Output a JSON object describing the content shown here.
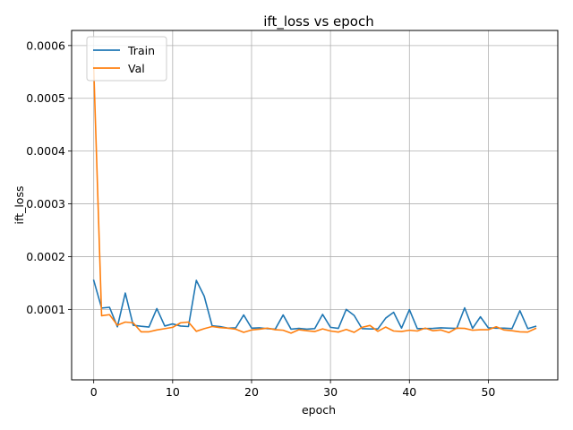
{
  "chart_data": {
    "type": "line",
    "title": "ift_loss vs epoch",
    "xlabel": "epoch",
    "ylabel": "ift_loss",
    "xlim": [
      -2.8,
      58.8
    ],
    "ylim": [
      -3.35e-05,
      0.0006286
    ],
    "xticks": [
      0,
      10,
      20,
      30,
      40,
      50
    ],
    "yticks": [
      0.0001,
      0.0002,
      0.0003,
      0.0004,
      0.0005,
      0.0006
    ],
    "ytick_labels": [
      "0.0001",
      "0.0002",
      "0.0003",
      "0.0004",
      "0.0005",
      "0.0006"
    ],
    "grid": true,
    "legend_position": "upper-left",
    "x": [
      0,
      1,
      2,
      3,
      4,
      5,
      6,
      7,
      8,
      9,
      10,
      11,
      12,
      13,
      14,
      15,
      16,
      17,
      18,
      19,
      20,
      21,
      22,
      23,
      24,
      25,
      26,
      27,
      28,
      29,
      30,
      31,
      32,
      33,
      34,
      35,
      36,
      37,
      38,
      39,
      40,
      41,
      42,
      43,
      44,
      45,
      46,
      47,
      48,
      49,
      50,
      51,
      52,
      53,
      54,
      55,
      56
    ],
    "series": [
      {
        "name": "Train",
        "color": "#1f77b4",
        "values": [
          0.000155,
          0.0001025,
          0.000104,
          6.7e-05,
          0.000131,
          7e-05,
          6.8e-05,
          6.65e-05,
          0.0001015,
          6.85e-05,
          7.25e-05,
          6.85e-05,
          6.75e-05,
          0.000155,
          0.000125,
          6.9e-05,
          6.75e-05,
          6.45e-05,
          6.5e-05,
          8.95e-05,
          6.45e-05,
          6.5e-05,
          6.35e-05,
          6.25e-05,
          8.95e-05,
          6.25e-05,
          6.4e-05,
          6.25e-05,
          6.35e-05,
          9.05e-05,
          6.6e-05,
          6.4e-05,
          0.0001,
          8.85e-05,
          6.35e-05,
          6.3e-05,
          6.3e-05,
          8.35e-05,
          9.45e-05,
          6.45e-05,
          9.95e-05,
          6.35e-05,
          6.35e-05,
          6.4e-05,
          6.5e-05,
          6.45e-05,
          6.4e-05,
          0.000103,
          6.4e-05,
          8.6e-05,
          6.5e-05,
          6.45e-05,
          6.45e-05,
          6.35e-05,
          9.75e-05,
          6.35e-05,
          6.8e-05
        ]
      },
      {
        "name": "Val",
        "color": "#ff7f0e",
        "values": [
          0.000558,
          8.8e-05,
          9e-05,
          7e-05,
          7.6e-05,
          7.45e-05,
          5.75e-05,
          5.75e-05,
          6.1e-05,
          6.35e-05,
          6.6e-05,
          7.45e-05,
          7.6e-05,
          5.85e-05,
          6.35e-05,
          6.75e-05,
          6.55e-05,
          6.45e-05,
          6.25e-05,
          5.65e-05,
          6.1e-05,
          6.25e-05,
          6.45e-05,
          6.15e-05,
          6.05e-05,
          5.5e-05,
          6.15e-05,
          5.95e-05,
          5.8e-05,
          6.3e-05,
          5.9e-05,
          5.7e-05,
          6.2e-05,
          5.65e-05,
          6.6e-05,
          6.95e-05,
          5.85e-05,
          6.65e-05,
          5.9e-05,
          5.8e-05,
          6.05e-05,
          5.9e-05,
          6.45e-05,
          5.95e-05,
          6.1e-05,
          5.6e-05,
          6.45e-05,
          6.4e-05,
          6.05e-05,
          6.15e-05,
          6.15e-05,
          6.7e-05,
          6.1e-05,
          5.95e-05,
          5.75e-05,
          5.7e-05,
          6.4e-05
        ]
      }
    ]
  }
}
